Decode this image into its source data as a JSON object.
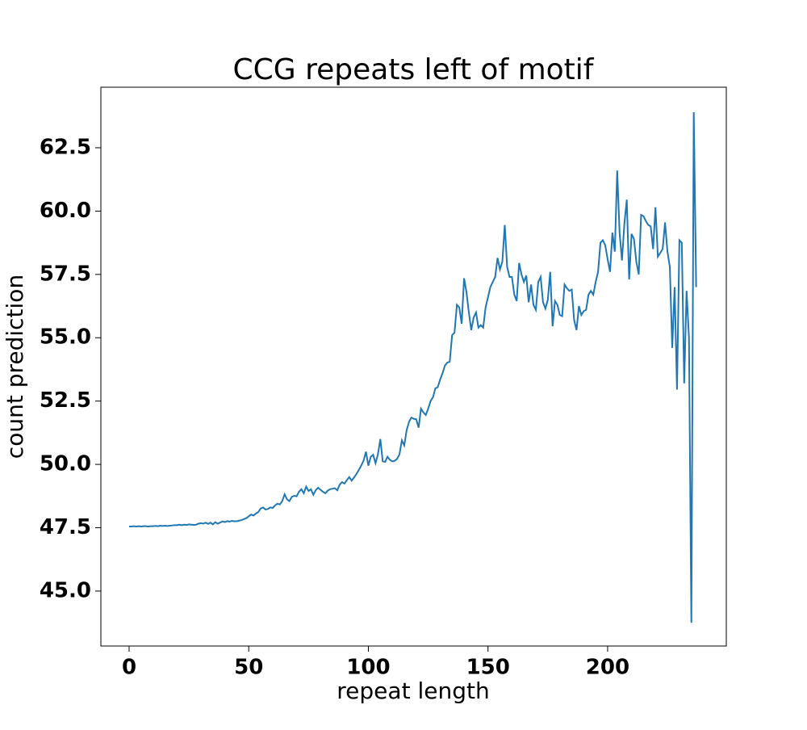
{
  "chart_data": {
    "type": "line",
    "title": "CCG repeats left of motif",
    "xlabel": "repeat length",
    "ylabel": "count prediction",
    "xlim": [
      -11.8,
      249.6
    ],
    "ylim": [
      42.83,
      64.89
    ],
    "xticks": [
      0,
      50,
      100,
      150,
      200
    ],
    "yticks": [
      {
        "value": 45,
        "label": "45.0"
      },
      47.5,
      {
        "value": 50,
        "label": "50.0"
      },
      52.5,
      {
        "value": 55,
        "label": "55.0"
      },
      57.5,
      {
        "value": 60,
        "label": "60.0"
      },
      62.5
    ],
    "x": [
      0,
      1,
      2,
      3,
      4,
      5,
      6,
      7,
      8,
      9,
      10,
      11,
      12,
      13,
      14,
      15,
      16,
      17,
      18,
      19,
      20,
      21,
      22,
      23,
      24,
      25,
      26,
      27,
      28,
      29,
      30,
      31,
      32,
      33,
      34,
      35,
      36,
      37,
      38,
      39,
      40,
      41,
      42,
      43,
      44,
      45,
      46,
      47,
      48,
      49,
      50,
      51,
      52,
      53,
      54,
      55,
      56,
      57,
      58,
      59,
      60,
      61,
      62,
      63,
      64,
      65,
      66,
      67,
      68,
      69,
      70,
      71,
      72,
      73,
      74,
      75,
      76,
      77,
      78,
      79,
      80,
      81,
      82,
      83,
      84,
      85,
      86,
      87,
      88,
      89,
      90,
      91,
      92,
      93,
      94,
      95,
      96,
      97,
      98,
      99,
      100,
      101,
      102,
      103,
      104,
      105,
      106,
      107,
      108,
      109,
      110,
      111,
      112,
      113,
      114,
      115,
      116,
      117,
      118,
      119,
      120,
      121,
      122,
      123,
      124,
      125,
      126,
      127,
      128,
      129,
      130,
      131,
      132,
      133,
      134,
      135,
      136,
      137,
      138,
      139,
      140,
      141,
      142,
      143,
      144,
      145,
      146,
      147,
      148,
      149,
      150,
      151,
      152,
      153,
      154,
      155,
      156,
      157,
      158,
      159,
      160,
      161,
      162,
      163,
      164,
      165,
      166,
      167,
      168,
      169,
      170,
      171,
      172,
      173,
      174,
      175,
      176,
      177,
      178,
      179,
      180,
      181,
      182,
      183,
      184,
      185,
      186,
      187,
      188,
      189,
      190,
      191,
      192,
      193,
      194,
      195,
      196,
      197,
      198,
      199,
      200,
      201,
      202,
      203,
      204,
      205,
      206,
      207,
      208,
      209,
      210,
      211,
      212,
      213,
      214,
      215,
      216,
      217,
      218,
      219,
      220,
      221,
      222,
      223,
      224,
      225,
      226,
      227,
      228,
      229,
      230,
      231,
      232,
      233,
      234,
      235,
      236,
      237
    ],
    "series": [
      {
        "color": "#1f77b4",
        "values": [
          47.55,
          47.55,
          47.56,
          47.55,
          47.56,
          47.55,
          47.56,
          47.56,
          47.55,
          47.56,
          47.56,
          47.57,
          47.56,
          47.58,
          47.57,
          47.58,
          47.57,
          47.58,
          47.59,
          47.6,
          47.6,
          47.62,
          47.6,
          47.62,
          47.61,
          47.63,
          47.62,
          47.61,
          47.62,
          47.66,
          47.68,
          47.66,
          47.7,
          47.65,
          47.7,
          47.63,
          47.72,
          47.66,
          47.7,
          47.75,
          47.72,
          47.76,
          47.74,
          47.77,
          47.75,
          47.76,
          47.78,
          47.8,
          47.84,
          47.88,
          47.95,
          48.02,
          47.98,
          48.06,
          48.12,
          48.26,
          48.3,
          48.22,
          48.24,
          48.3,
          48.28,
          48.38,
          48.45,
          48.42,
          48.55,
          48.82,
          48.62,
          48.55,
          48.72,
          48.76,
          48.74,
          48.92,
          49.02,
          48.86,
          49.12,
          48.95,
          49.02,
          48.8,
          48.98,
          49.08,
          49.0,
          48.92,
          48.86,
          48.96,
          49.02,
          49.04,
          49.06,
          48.98,
          49.2,
          49.3,
          49.24,
          49.38,
          49.5,
          49.36,
          49.48,
          49.62,
          49.78,
          49.95,
          50.15,
          50.5,
          49.95,
          50.3,
          50.38,
          50.05,
          50.4,
          51.0,
          50.12,
          50.1,
          50.3,
          50.18,
          50.12,
          50.14,
          50.22,
          50.4,
          50.95,
          50.75,
          51.35,
          51.68,
          51.85,
          51.8,
          51.78,
          51.45,
          52.2,
          52.05,
          51.95,
          52.2,
          52.5,
          52.65,
          53.0,
          53.05,
          53.35,
          53.6,
          53.9,
          54.02,
          54.05,
          55.1,
          55.2,
          56.3,
          56.2,
          55.55,
          57.35,
          56.8,
          56.0,
          55.3,
          55.8,
          56.0,
          55.4,
          55.5,
          55.4,
          56.2,
          56.6,
          57.0,
          57.2,
          57.4,
          58.15,
          57.7,
          58.0,
          59.45,
          57.8,
          57.4,
          57.4,
          56.7,
          56.45,
          57.95,
          57.5,
          57.2,
          57.45,
          56.4,
          57.1,
          56.3,
          56.1,
          57.2,
          57.4,
          56.4,
          56.15,
          56.5,
          57.6,
          55.45,
          56.45,
          56.3,
          55.9,
          55.85,
          57.1,
          56.95,
          56.85,
          56.9,
          55.7,
          55.3,
          56.25,
          55.9,
          56.05,
          56.1,
          56.7,
          56.85,
          56.7,
          57.2,
          57.6,
          58.75,
          58.85,
          58.65,
          58.1,
          57.6,
          59.15,
          58.4,
          61.6,
          59.15,
          58.05,
          59.5,
          60.45,
          57.3,
          59.1,
          58.9,
          58.0,
          57.5,
          59.85,
          59.8,
          59.6,
          59.45,
          59.4,
          58.5,
          60.15,
          58.2,
          58.35,
          58.5,
          59.55,
          58.4,
          57.8,
          54.6,
          57.0,
          52.95,
          58.85,
          58.75,
          53.2,
          56.85,
          55.0,
          43.75,
          63.9,
          57.0
        ]
      }
    ]
  }
}
